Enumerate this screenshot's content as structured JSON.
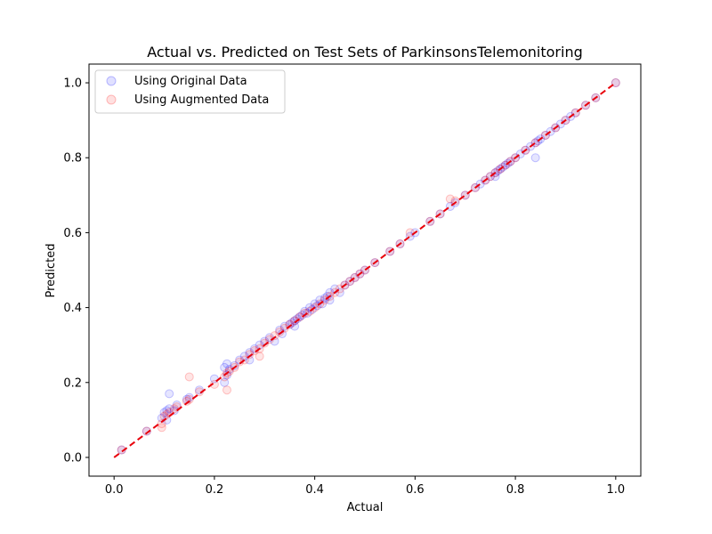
{
  "chart_data": {
    "type": "scatter",
    "title": "Actual vs. Predicted on Test Sets of ParkinsonsTelemonitoring",
    "xlabel": "Actual",
    "ylabel": "Predicted",
    "xlim": [
      -0.05,
      1.05
    ],
    "ylim": [
      -0.05,
      1.05
    ],
    "xticks": [
      "0.0",
      "0.2",
      "0.4",
      "0.6",
      "0.8",
      "1.0"
    ],
    "yticks": [
      "0.0",
      "0.2",
      "0.4",
      "0.6",
      "0.8",
      "1.0"
    ],
    "grid": false,
    "legend_position": "top-left",
    "reference_line": {
      "x": [
        0,
        1
      ],
      "y": [
        0,
        1
      ],
      "style": "dashed",
      "color": "#e8000b"
    },
    "series": [
      {
        "name": "Using Original Data",
        "color": "#0000ff",
        "x": [
          0.015,
          0.065,
          0.095,
          0.1,
          0.105,
          0.11,
          0.11,
          0.12,
          0.125,
          0.145,
          0.15,
          0.17,
          0.2,
          0.22,
          0.22,
          0.225,
          0.225,
          0.23,
          0.24,
          0.25,
          0.26,
          0.27,
          0.28,
          0.29,
          0.3,
          0.31,
          0.32,
          0.33,
          0.335,
          0.34,
          0.35,
          0.355,
          0.36,
          0.365,
          0.37,
          0.375,
          0.38,
          0.385,
          0.39,
          0.395,
          0.4,
          0.405,
          0.41,
          0.415,
          0.42,
          0.425,
          0.43,
          0.44,
          0.45,
          0.46,
          0.47,
          0.48,
          0.49,
          0.5,
          0.52,
          0.55,
          0.57,
          0.59,
          0.6,
          0.63,
          0.65,
          0.67,
          0.68,
          0.7,
          0.72,
          0.73,
          0.74,
          0.75,
          0.76,
          0.765,
          0.77,
          0.775,
          0.78,
          0.785,
          0.79,
          0.8,
          0.81,
          0.82,
          0.83,
          0.84,
          0.845,
          0.85,
          0.86,
          0.87,
          0.88,
          0.89,
          0.9,
          0.91,
          0.92,
          0.94,
          0.96,
          1.0,
          0.105,
          0.27,
          0.36,
          0.43,
          0.76,
          0.84
        ],
        "y": [
          0.02,
          0.07,
          0.105,
          0.12,
          0.125,
          0.17,
          0.13,
          0.125,
          0.14,
          0.155,
          0.16,
          0.18,
          0.21,
          0.2,
          0.24,
          0.22,
          0.25,
          0.235,
          0.245,
          0.26,
          0.27,
          0.28,
          0.29,
          0.3,
          0.31,
          0.32,
          0.31,
          0.34,
          0.33,
          0.35,
          0.355,
          0.36,
          0.365,
          0.37,
          0.375,
          0.38,
          0.39,
          0.385,
          0.4,
          0.395,
          0.41,
          0.405,
          0.42,
          0.41,
          0.425,
          0.43,
          0.44,
          0.45,
          0.44,
          0.46,
          0.47,
          0.48,
          0.49,
          0.5,
          0.52,
          0.55,
          0.57,
          0.59,
          0.6,
          0.63,
          0.65,
          0.67,
          0.68,
          0.7,
          0.72,
          0.73,
          0.74,
          0.75,
          0.76,
          0.765,
          0.77,
          0.775,
          0.78,
          0.785,
          0.79,
          0.8,
          0.81,
          0.82,
          0.83,
          0.84,
          0.845,
          0.85,
          0.86,
          0.87,
          0.88,
          0.89,
          0.9,
          0.91,
          0.92,
          0.94,
          0.96,
          1.0,
          0.1,
          0.26,
          0.35,
          0.42,
          0.75,
          0.8
        ]
      },
      {
        "name": "Using Augmented Data",
        "color": "#ff0000",
        "x": [
          0.015,
          0.065,
          0.095,
          0.1,
          0.105,
          0.11,
          0.12,
          0.125,
          0.145,
          0.15,
          0.17,
          0.2,
          0.22,
          0.225,
          0.23,
          0.24,
          0.25,
          0.26,
          0.27,
          0.28,
          0.29,
          0.3,
          0.31,
          0.32,
          0.33,
          0.34,
          0.35,
          0.36,
          0.37,
          0.38,
          0.39,
          0.4,
          0.41,
          0.42,
          0.43,
          0.44,
          0.45,
          0.46,
          0.47,
          0.48,
          0.49,
          0.5,
          0.52,
          0.55,
          0.57,
          0.59,
          0.63,
          0.65,
          0.67,
          0.68,
          0.7,
          0.72,
          0.74,
          0.75,
          0.76,
          0.77,
          0.78,
          0.79,
          0.8,
          0.82,
          0.84,
          0.86,
          0.88,
          0.9,
          0.92,
          0.94,
          0.96,
          1.0,
          0.095,
          0.15,
          0.225,
          0.29
        ],
        "y": [
          0.02,
          0.07,
          0.09,
          0.11,
          0.115,
          0.12,
          0.13,
          0.135,
          0.15,
          0.155,
          0.175,
          0.195,
          0.215,
          0.225,
          0.23,
          0.24,
          0.255,
          0.26,
          0.275,
          0.285,
          0.29,
          0.305,
          0.315,
          0.325,
          0.335,
          0.345,
          0.355,
          0.365,
          0.375,
          0.385,
          0.39,
          0.4,
          0.41,
          0.42,
          0.43,
          0.44,
          0.45,
          0.46,
          0.47,
          0.48,
          0.49,
          0.5,
          0.52,
          0.55,
          0.57,
          0.6,
          0.63,
          0.65,
          0.69,
          0.685,
          0.7,
          0.72,
          0.74,
          0.75,
          0.76,
          0.77,
          0.78,
          0.79,
          0.8,
          0.82,
          0.84,
          0.86,
          0.88,
          0.9,
          0.92,
          0.94,
          0.96,
          1.0,
          0.08,
          0.215,
          0.18,
          0.27
        ]
      }
    ]
  }
}
